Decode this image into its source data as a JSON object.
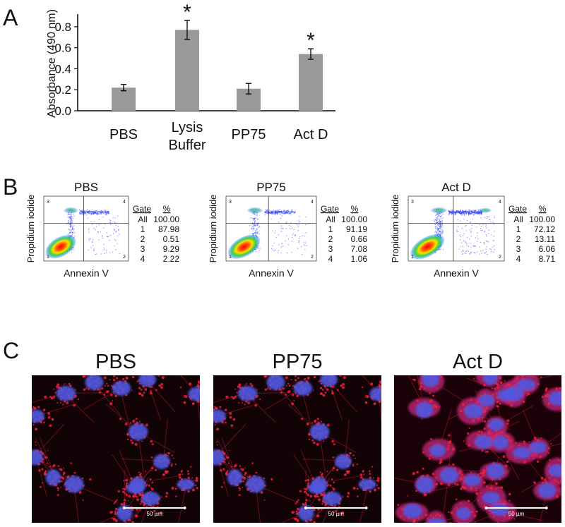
{
  "panel_labels": [
    "A",
    "B",
    "C"
  ],
  "chart_data": {
    "type": "bar",
    "y_label": "Absorbance (490 nm)",
    "categories": [
      "PBS",
      "Lysis Buffer",
      "PP75",
      "Act D"
    ],
    "values": [
      0.22,
      0.77,
      0.21,
      0.54
    ],
    "errors": [
      0.03,
      0.09,
      0.05,
      0.05
    ],
    "markers": [
      null,
      "*",
      null,
      "*"
    ],
    "color": "#999999",
    "ylim": [
      0,
      0.9
    ],
    "yticks": [
      {
        "value": 0,
        "label": "0.0"
      },
      0.2,
      0.4,
      0.6,
      0.8
    ]
  },
  "flow": {
    "x_label": "Annexin V",
    "y_label": "Propidium iodide",
    "quadrant_labels": [
      "1",
      "2",
      "3",
      "4"
    ],
    "table_header": [
      "Gate",
      "%"
    ],
    "plots": [
      {
        "title": "PBS",
        "rows": [
          [
            "All",
            "100.00"
          ],
          [
            "1",
            "87.98"
          ],
          [
            "2",
            "0.51"
          ],
          [
            "3",
            "9.29"
          ],
          [
            "4",
            "2.22"
          ]
        ]
      },
      {
        "title": "PP75",
        "rows": [
          [
            "All",
            "100.00"
          ],
          [
            "1",
            "91.19"
          ],
          [
            "2",
            "0.66"
          ],
          [
            "3",
            "7.08"
          ],
          [
            "4",
            "1.06"
          ]
        ]
      },
      {
        "title": "Act D",
        "rows": [
          [
            "All",
            "100.00"
          ],
          [
            "1",
            "72.12"
          ],
          [
            "2",
            "13.11"
          ],
          [
            "3",
            "6.06"
          ],
          [
            "4",
            "8.71"
          ]
        ]
      }
    ]
  },
  "micrographs": {
    "titles": [
      "PBS",
      "PP75",
      "Act D"
    ],
    "scale_bar": "50 µm"
  }
}
